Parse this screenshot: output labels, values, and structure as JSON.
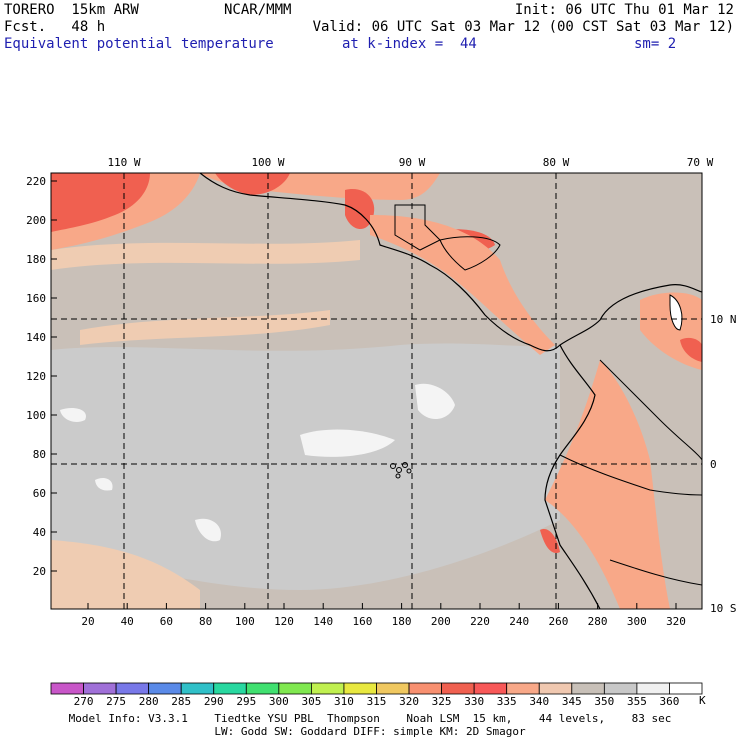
{
  "header": {
    "model": "TORERO  15km ARW",
    "org": "NCAR/MMM",
    "init": "Init: 06 UTC Thu 01 Mar 12",
    "fcst": "Fcst.   48 h",
    "valid": "Valid: 06 UTC Sat 03 Mar 12 (00 CST Sat 03 Mar 12)",
    "field": "Equivalent potential temperature",
    "level": "at k-index =  44",
    "smooth": "sm= 2"
  },
  "axes": {
    "top_lon": [
      "110 W",
      "100 W",
      "90 W",
      "80 W",
      "70 W"
    ],
    "right_lat": [
      "10 N",
      "0",
      "10 S"
    ],
    "left_ticks": [
      "220",
      "200",
      "180",
      "160",
      "140",
      "120",
      "100",
      "80",
      "60",
      "40",
      "20"
    ],
    "bottom_ticks": [
      "20",
      "40",
      "60",
      "80",
      "100",
      "120",
      "140",
      "160",
      "180",
      "200",
      "220",
      "240",
      "260",
      "280",
      "300",
      "320"
    ]
  },
  "colorbar": {
    "labels": [
      "270",
      "275",
      "280",
      "285",
      "290",
      "295",
      "300",
      "305",
      "310",
      "315",
      "320",
      "325",
      "330",
      "335",
      "340",
      "345",
      "350",
      "355",
      "360"
    ],
    "unit": "K",
    "colors": [
      "#c856c8",
      "#a070d8",
      "#7878e8",
      "#5a8ae8",
      "#30c0c8",
      "#28d8a0",
      "#40e070",
      "#80e850",
      "#c0f050",
      "#e8e840",
      "#f0c860",
      "#f89070",
      "#f06050",
      "#f85858",
      "#f8a888",
      "#f0c8b0",
      "#c8c0b8",
      "#c8c8c8",
      "#f0f0f0",
      "#ffffff"
    ]
  },
  "footer": {
    "line1": "Model Info: V3.3.1    Tiedtke YSU PBL  Thompson    Noah LSM  15 km,    44 levels,    83 sec",
    "line2": "LW: Godd SW: Goddard DIFF: simple KM: 2D Smagor"
  }
}
